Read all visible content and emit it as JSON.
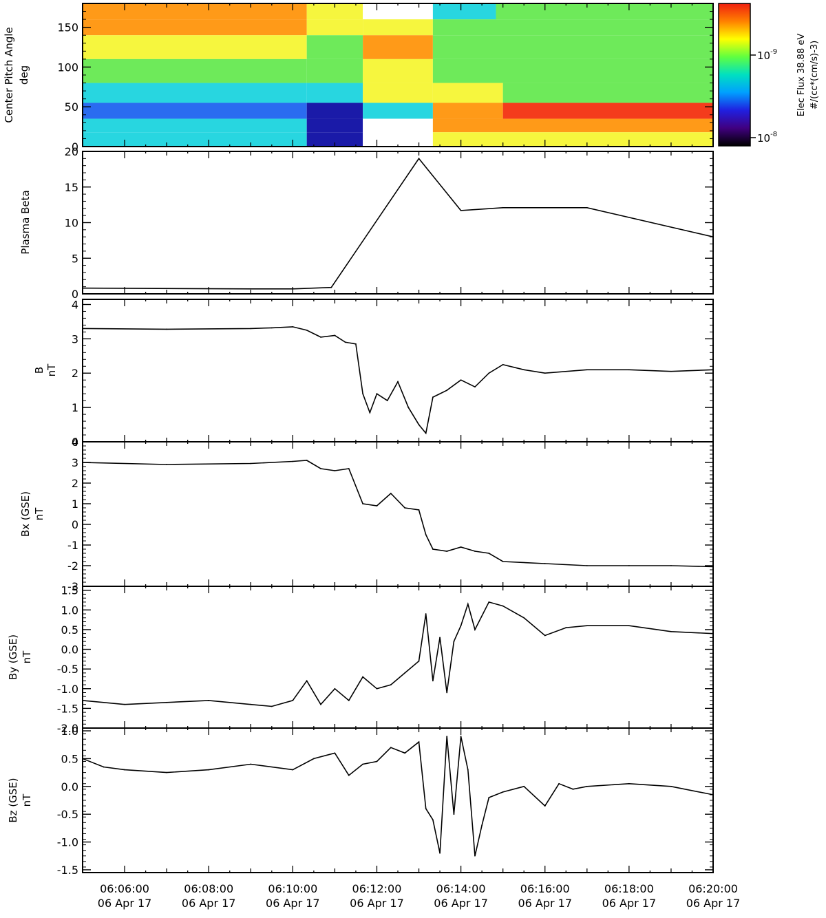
{
  "chart_data": [
    {
      "type": "heatmap",
      "ylabel": "Center Pitch Angle",
      "yunit": "deg",
      "ylim": [
        0,
        180
      ],
      "yticks": [
        0,
        50,
        100,
        150
      ],
      "colorbar": {
        "label": "Elec Flux 38.88 eV",
        "unit": "#/(cc*(cm/s)-3)",
        "ticks": [
          {
            "label": "10",
            "exp": "-8"
          },
          {
            "label": "10",
            "exp": "-9"
          }
        ],
        "colors": [
          "#f02010",
          "#ff8000",
          "#ffff00",
          "#60ff40",
          "#00e0c0",
          "#00a0ff",
          "#2020e0",
          "#400080",
          "#000000"
        ]
      },
      "palette": {
        "white": "#ffffff",
        "red": "#f43c1c",
        "orange": "#ff9a18",
        "yellow": "#f6f63e",
        "green": "#6eea5a",
        "cyan": "#28d6e0",
        "blue": "#2a6cf0",
        "navy": "#1a1aa8",
        "black": "#000000"
      },
      "bands": [
        {
          "lo": 160,
          "hi": 180,
          "segments": [
            [
              "06:05:00",
              "06:10:20",
              "orange"
            ],
            [
              "06:10:20",
              "06:11:40",
              "yellow"
            ],
            [
              "06:11:40",
              "06:13:20",
              "white"
            ],
            [
              "06:13:20",
              "06:14:50",
              "cyan"
            ],
            [
              "06:14:50",
              "06:20:00",
              "green"
            ]
          ]
        },
        {
          "lo": 140,
          "hi": 160,
          "segments": [
            [
              "06:05:00",
              "06:10:20",
              "orange"
            ],
            [
              "06:10:20",
              "06:11:40",
              "yellow"
            ],
            [
              "06:11:40",
              "06:13:20",
              "yellow"
            ],
            [
              "06:13:20",
              "06:20:00",
              "green"
            ]
          ]
        },
        {
          "lo": 110,
          "hi": 140,
          "segments": [
            [
              "06:05:00",
              "06:10:20",
              "yellow"
            ],
            [
              "06:10:20",
              "06:11:40",
              "green"
            ],
            [
              "06:11:40",
              "06:13:20",
              "orange"
            ],
            [
              "06:13:20",
              "06:20:00",
              "green"
            ]
          ]
        },
        {
          "lo": 80,
          "hi": 110,
          "segments": [
            [
              "06:05:00",
              "06:10:20",
              "green"
            ],
            [
              "06:10:20",
              "06:11:40",
              "green"
            ],
            [
              "06:11:40",
              "06:13:20",
              "yellow"
            ],
            [
              "06:13:20",
              "06:20:00",
              "green"
            ]
          ]
        },
        {
          "lo": 55,
          "hi": 80,
          "segments": [
            [
              "06:05:00",
              "06:10:20",
              "cyan"
            ],
            [
              "06:10:20",
              "06:11:40",
              "cyan"
            ],
            [
              "06:11:40",
              "06:13:20",
              "yellow"
            ],
            [
              "06:13:20",
              "06:15:00",
              "yellow"
            ],
            [
              "06:15:00",
              "06:20:00",
              "green"
            ]
          ]
        },
        {
          "lo": 35,
          "hi": 55,
          "segments": [
            [
              "06:05:00",
              "06:10:20",
              "blue"
            ],
            [
              "06:10:20",
              "06:11:40",
              "navy"
            ],
            [
              "06:11:40",
              "06:13:20",
              "cyan"
            ],
            [
              "06:13:20",
              "06:15:00",
              "orange"
            ],
            [
              "06:15:00",
              "06:20:00",
              "red"
            ]
          ]
        },
        {
          "lo": 18,
          "hi": 35,
          "segments": [
            [
              "06:05:00",
              "06:10:20",
              "cyan"
            ],
            [
              "06:10:20",
              "06:11:40",
              "navy"
            ],
            [
              "06:11:40",
              "06:13:20",
              "white"
            ],
            [
              "06:13:20",
              "06:20:00",
              "orange"
            ]
          ]
        },
        {
          "lo": 0,
          "hi": 18,
          "segments": [
            [
              "06:05:00",
              "06:10:20",
              "cyan"
            ],
            [
              "06:10:20",
              "06:11:40",
              "navy"
            ],
            [
              "06:11:40",
              "06:13:20",
              "white"
            ],
            [
              "06:13:20",
              "06:20:00",
              "yellow"
            ]
          ]
        }
      ]
    },
    {
      "type": "line",
      "ylabel": "Plasma Beta",
      "yunit": "",
      "ylim": [
        0,
        20
      ],
      "yticks": [
        0,
        5,
        10,
        15,
        20
      ],
      "x": [
        "06:05:00",
        "06:09:00",
        "06:10:00",
        "06:10:55",
        "06:13:00",
        "06:14:00",
        "06:15:00",
        "06:17:00",
        "06:20:00"
      ],
      "y": [
        0.8,
        0.7,
        0.7,
        0.9,
        19,
        11.7,
        12.1,
        12.1,
        8.0
      ]
    },
    {
      "type": "line",
      "ylabel": "B",
      "yunit": "nT",
      "ylim": [
        0,
        4.15
      ],
      "yticks": [
        0,
        1,
        2,
        3,
        4
      ],
      "x": [
        "06:05:00",
        "06:07:00",
        "06:09:00",
        "06:09:30",
        "06:10:00",
        "06:10:20",
        "06:10:40",
        "06:11:00",
        "06:11:15",
        "06:11:30",
        "06:11:40",
        "06:11:50",
        "06:12:00",
        "06:12:15",
        "06:12:30",
        "06:12:45",
        "06:13:00",
        "06:13:10",
        "06:13:20",
        "06:13:40",
        "06:14:00",
        "06:14:20",
        "06:14:40",
        "06:15:00",
        "06:15:30",
        "06:16:00",
        "06:17:00",
        "06:18:00",
        "06:19:00",
        "06:20:00"
      ],
      "y": [
        3.3,
        3.28,
        3.3,
        3.32,
        3.35,
        3.25,
        3.05,
        3.1,
        2.9,
        2.85,
        1.4,
        0.85,
        1.4,
        1.2,
        1.75,
        1.0,
        0.5,
        0.25,
        1.3,
        1.5,
        1.8,
        1.6,
        2.0,
        2.25,
        2.1,
        2.0,
        2.1,
        2.1,
        2.05,
        2.1
      ]
    },
    {
      "type": "line",
      "ylabel": "Bx",
      "yunit": "nT",
      "ylabel_coord": "(GSE)",
      "ylim": [
        -3,
        4
      ],
      "yticks": [
        -3,
        -2,
        -1,
        0,
        1,
        2,
        3,
        4
      ],
      "x": [
        "06:05:00",
        "06:07:00",
        "06:09:00",
        "06:10:00",
        "06:10:20",
        "06:10:40",
        "06:11:00",
        "06:11:20",
        "06:11:40",
        "06:12:00",
        "06:12:20",
        "06:12:40",
        "06:13:00",
        "06:13:10",
        "06:13:20",
        "06:13:40",
        "06:14:00",
        "06:14:20",
        "06:14:40",
        "06:15:00",
        "06:16:00",
        "06:17:00",
        "06:18:00",
        "06:19:00",
        "06:20:00"
      ],
      "y": [
        3.0,
        2.9,
        2.95,
        3.05,
        3.1,
        2.7,
        2.6,
        2.7,
        1.0,
        0.9,
        1.5,
        0.8,
        0.7,
        -0.5,
        -1.2,
        -1.3,
        -1.1,
        -1.3,
        -1.4,
        -1.8,
        -1.9,
        -2.0,
        -2.0,
        -2.0,
        -2.05
      ]
    },
    {
      "type": "line",
      "ylabel": "By",
      "yunit": "nT",
      "ylabel_coord": "(GSE)",
      "ylim": [
        -2.0,
        1.6
      ],
      "yticks": [
        -2.0,
        -1.5,
        -1.0,
        -0.5,
        0.0,
        0.5,
        1.0,
        1.5
      ],
      "x": [
        "06:05:00",
        "06:06:00",
        "06:07:00",
        "06:08:00",
        "06:09:00",
        "06:09:30",
        "06:10:00",
        "06:10:20",
        "06:10:40",
        "06:11:00",
        "06:11:20",
        "06:11:40",
        "06:12:00",
        "06:12:20",
        "06:12:40",
        "06:13:00",
        "06:13:10",
        "06:13:20",
        "06:13:30",
        "06:13:40",
        "06:13:50",
        "06:14:00",
        "06:14:10",
        "06:14:20",
        "06:14:40",
        "06:15:00",
        "06:15:30",
        "06:16:00",
        "06:16:30",
        "06:17:00",
        "06:18:00",
        "06:19:00",
        "06:20:00"
      ],
      "y": [
        -1.3,
        -1.4,
        -1.35,
        -1.3,
        -1.4,
        -1.45,
        -1.3,
        -0.8,
        -1.4,
        -1.0,
        -1.3,
        -0.7,
        -1.0,
        -0.9,
        -0.6,
        -0.3,
        0.9,
        -0.8,
        0.3,
        -1.1,
        0.2,
        0.6,
        1.15,
        0.5,
        1.2,
        1.1,
        0.8,
        0.35,
        0.55,
        0.6,
        0.6,
        0.45,
        0.4
      ]
    },
    {
      "type": "line",
      "ylabel": "Bz",
      "yunit": "nT",
      "ylabel_coord": "(GSE)",
      "ylim": [
        -1.55,
        1.05
      ],
      "yticks": [
        -1.5,
        -1.0,
        -0.5,
        0.0,
        0.5,
        1.0
      ],
      "xticks": [
        {
          "time": "06:06:00",
          "date": "06 Apr 17"
        },
        {
          "time": "06:08:00",
          "date": "06 Apr 17"
        },
        {
          "time": "06:10:00",
          "date": "06 Apr 17"
        },
        {
          "time": "06:12:00",
          "date": "06 Apr 17"
        },
        {
          "time": "06:14:00",
          "date": "06 Apr 17"
        },
        {
          "time": "06:16:00",
          "date": "06 Apr 17"
        },
        {
          "time": "06:18:00",
          "date": "06 Apr 17"
        },
        {
          "time": "06:20:00",
          "date": "06 Apr 17"
        }
      ],
      "x": [
        "06:05:00",
        "06:05:30",
        "06:06:00",
        "06:07:00",
        "06:08:00",
        "06:09:00",
        "06:10:00",
        "06:10:30",
        "06:11:00",
        "06:11:20",
        "06:11:40",
        "06:12:00",
        "06:12:20",
        "06:12:40",
        "06:13:00",
        "06:13:10",
        "06:13:20",
        "06:13:30",
        "06:13:40",
        "06:13:50",
        "06:14:00",
        "06:14:10",
        "06:14:20",
        "06:14:30",
        "06:14:40",
        "06:15:00",
        "06:15:30",
        "06:16:00",
        "06:16:20",
        "06:16:40",
        "06:17:00",
        "06:18:00",
        "06:19:00",
        "06:20:00"
      ],
      "y": [
        0.5,
        0.35,
        0.3,
        0.25,
        0.3,
        0.4,
        0.3,
        0.5,
        0.6,
        0.2,
        0.4,
        0.45,
        0.7,
        0.6,
        0.8,
        -0.4,
        -0.6,
        -1.2,
        0.9,
        -0.5,
        0.9,
        0.3,
        -1.25,
        -0.7,
        -0.2,
        -0.1,
        0.0,
        -0.35,
        0.05,
        -0.05,
        0.0,
        0.05,
        0.0,
        -0.15
      ]
    }
  ]
}
